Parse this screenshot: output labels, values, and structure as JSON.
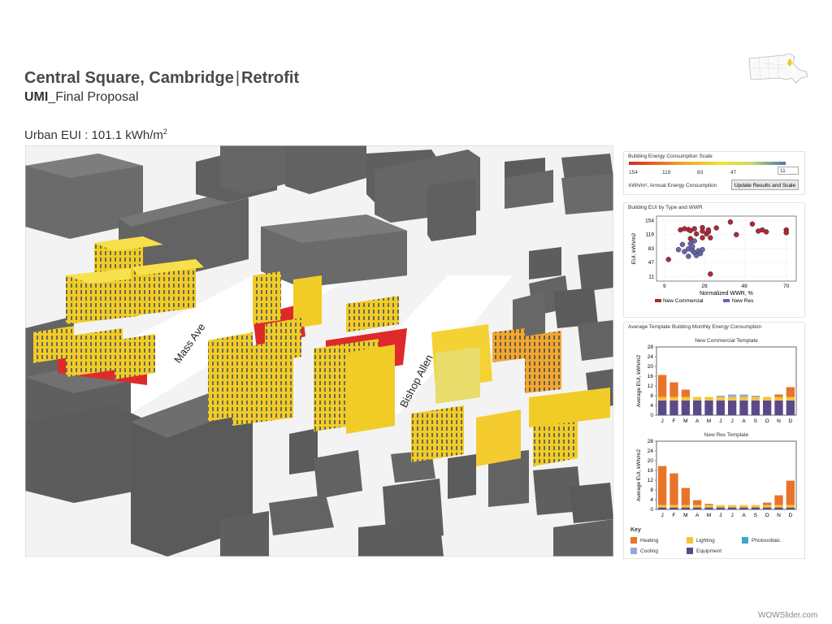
{
  "header": {
    "title_left": "Central Square, Cambridge",
    "title_sep": "|",
    "title_right": "Retrofit",
    "subtitle_bold": "UMI",
    "subtitle_rest": "_Final Proposal",
    "eui_label": "Urban EUI : 101.1 kWh/m",
    "eui_sup": "2"
  },
  "streets": {
    "mass_ave": "Mass Ave",
    "bishop_allen": "Bishop Allen"
  },
  "scale_panel": {
    "title": "Building Energy Consumption Scale",
    "labels": [
      "154",
      "119",
      "83",
      "47"
    ],
    "input_value": "11",
    "units": "kWh/m², Annual Energy Consumption",
    "button": "Update Results and Scale",
    "colors": [
      "#d62b1f",
      "#f4a52a",
      "#f7e22a",
      "#c9d86a",
      "#4a78b0"
    ]
  },
  "scatter_panel": {
    "title": "Building EUI by Type and WWR",
    "xlabel": "Normalized WWR, %",
    "ylabel": "EUI, kWh/m2",
    "xticks": [
      "9",
      "29",
      "49",
      "70"
    ],
    "yticks": [
      "154",
      "119",
      "83",
      "47",
      "11"
    ],
    "legend": [
      "New Commercial",
      "New Res"
    ]
  },
  "monthly_panel": {
    "title": "Average Template Building Monthly Energy Consumption",
    "months": [
      "J",
      "F",
      "M",
      "A",
      "M",
      "J",
      "J",
      "A",
      "S",
      "O",
      "N",
      "D"
    ],
    "yticks": [
      "0",
      "4",
      "8",
      "12",
      "16",
      "20",
      "24",
      "28"
    ],
    "ylabel": "Average EUI, kWh/m2"
  },
  "key": {
    "title": "Key",
    "heating": "Heating",
    "lighting": "Lighting",
    "photovoltaic": "Photovoltaic",
    "cooling": "Cooling",
    "equipment": "Equipment"
  },
  "colors": {
    "heating": "#e8742a",
    "lighting": "#f4c53a",
    "photovoltaic": "#3aa8c8",
    "cooling": "#94a8d8",
    "equipment": "#5b4a8a",
    "commercial_dot": "#b02838",
    "res_dot": "#6a64b0"
  },
  "chart_data": [
    {
      "type": "scatter",
      "title": "Building EUI by Type and WWR",
      "xlabel": "Normalized WWR, %",
      "ylabel": "EUI, kWh/m2",
      "xlim": [
        5,
        75
      ],
      "ylim": [
        0,
        165
      ],
      "series": [
        {
          "name": "New Commercial",
          "color": "#b02838",
          "points": [
            [
              11,
              55
            ],
            [
              17,
              130
            ],
            [
              19,
              133
            ],
            [
              21,
              131
            ],
            [
              22,
              128
            ],
            [
              22,
              108
            ],
            [
              24,
              133
            ],
            [
              25,
              120
            ],
            [
              28,
              136
            ],
            [
              28,
              127
            ],
            [
              28,
              110
            ],
            [
              30,
              120
            ],
            [
              31,
              125
            ],
            [
              31,
              130
            ],
            [
              32,
              110
            ],
            [
              32,
              18
            ],
            [
              35,
              135
            ],
            [
              42,
              150
            ],
            [
              45,
              118
            ],
            [
              53,
              145
            ],
            [
              56,
              127
            ],
            [
              58,
              130
            ],
            [
              60,
              125
            ],
            [
              70,
              130
            ],
            [
              70,
              123
            ]
          ]
        },
        {
          "name": "New Res",
          "color": "#6a64b0",
          "points": [
            [
              16,
              80
            ],
            [
              18,
              93
            ],
            [
              19,
              75
            ],
            [
              21,
              82
            ],
            [
              21,
              63
            ],
            [
              22,
              95
            ],
            [
              23,
              78
            ],
            [
              23,
              88
            ],
            [
              24,
              72
            ],
            [
              24,
              102
            ],
            [
              25,
              65
            ],
            [
              26,
              77
            ],
            [
              27,
              70
            ],
            [
              28,
              80
            ]
          ]
        }
      ]
    },
    {
      "type": "bar",
      "title": "New Commercial Template",
      "categories": [
        "J",
        "F",
        "M",
        "A",
        "M",
        "J",
        "J",
        "A",
        "S",
        "O",
        "N",
        "D"
      ],
      "ylabel": "Average EUI, kWh/m2",
      "ylim": [
        0,
        28
      ],
      "series": [
        {
          "name": "Equipment",
          "values": [
            6,
            6,
            6,
            6,
            6,
            6,
            6,
            6,
            6,
            6,
            6,
            6
          ]
        },
        {
          "name": "Lighting",
          "values": [
            1.5,
            1.5,
            1.5,
            1.5,
            1.5,
            1.5,
            1.5,
            1.5,
            1.5,
            1.5,
            1.5,
            1.5
          ]
        },
        {
          "name": "Cooling",
          "values": [
            0,
            0,
            0,
            0,
            0,
            0.5,
            1,
            1,
            0.5,
            0,
            0,
            0
          ]
        },
        {
          "name": "Heating",
          "values": [
            9,
            6,
            3,
            0,
            0,
            0,
            0,
            0,
            0,
            0,
            1,
            4
          ]
        }
      ]
    },
    {
      "type": "bar",
      "title": "New Res Template",
      "categories": [
        "J",
        "F",
        "M",
        "A",
        "M",
        "J",
        "J",
        "A",
        "S",
        "O",
        "N",
        "D"
      ],
      "ylabel": "Average EUI, kWh/m2",
      "ylim": [
        0,
        28
      ],
      "series": [
        {
          "name": "Equipment",
          "values": [
            0.8,
            0.8,
            0.8,
            0.8,
            0.8,
            0.8,
            0.8,
            0.8,
            0.8,
            0.8,
            0.8,
            0.8
          ]
        },
        {
          "name": "Lighting",
          "values": [
            1,
            1,
            1,
            1,
            1,
            1,
            1,
            1,
            1,
            1,
            1,
            1
          ]
        },
        {
          "name": "Cooling",
          "values": [
            0,
            0,
            0,
            0,
            0,
            0,
            0,
            0,
            0,
            0,
            0,
            0
          ]
        },
        {
          "name": "Heating",
          "values": [
            16,
            13,
            7,
            2,
            0.5,
            0,
            0,
            0,
            0,
            1,
            4,
            10
          ]
        }
      ]
    }
  ],
  "footer": {
    "watermark": "WOWSlider.com"
  }
}
